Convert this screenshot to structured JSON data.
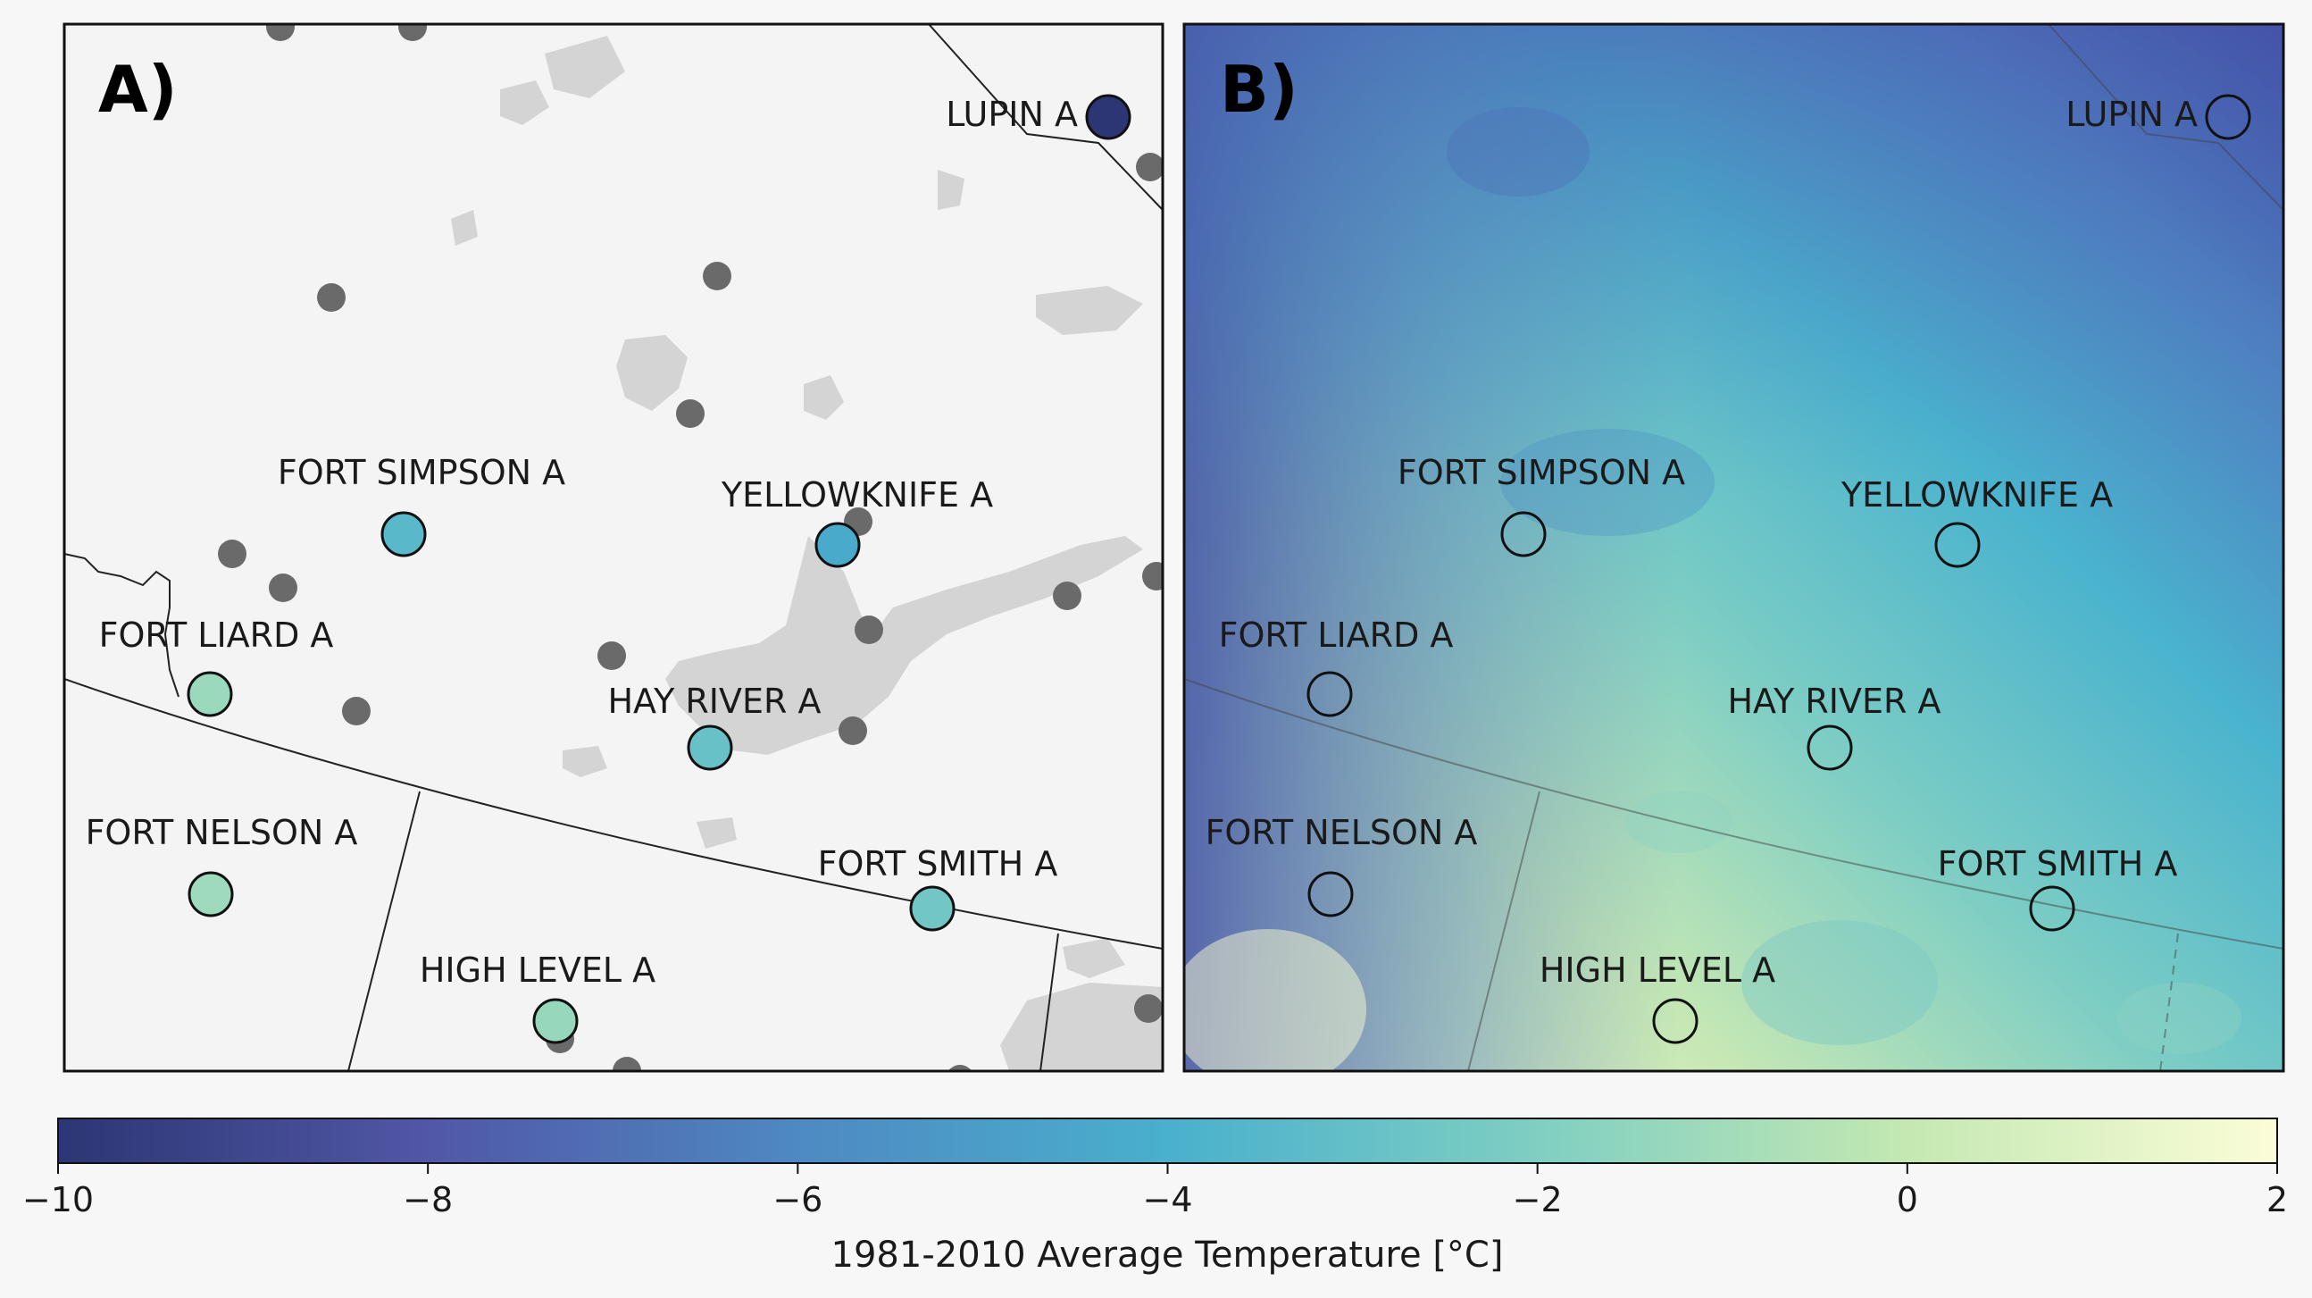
{
  "panels": [
    {
      "letter": "A)",
      "background": "base map (land, lakes, borders)",
      "grey_stations": "other stations"
    },
    {
      "letter": "B)",
      "background": "gridded 1981-2010 average temperature field"
    }
  ],
  "stations": [
    {
      "name": "LUPIN A",
      "temp_c": -10.0
    },
    {
      "name": "FORT SIMPSON A",
      "temp_c": -3.4
    },
    {
      "name": "YELLOWKNIFE A",
      "temp_c": -4.3
    },
    {
      "name": "FORT LIARD A",
      "temp_c": -1.2
    },
    {
      "name": "HAY RIVER A",
      "temp_c": -2.9
    },
    {
      "name": "FORT NELSON A",
      "temp_c": -1.1
    },
    {
      "name": "FORT SMITH A",
      "temp_c": -2.5
    },
    {
      "name": "HIGH LEVEL A",
      "temp_c": -1.3
    }
  ],
  "colorbar": {
    "label": "1981-2010 Average Temperature [°C]",
    "min": -10,
    "max": 2,
    "ticks": [
      "−10",
      "−8",
      "−6",
      "−4",
      "−2",
      "0",
      "2"
    ],
    "colors": [
      "#2c3674",
      "#5157a6",
      "#4e89c3",
      "#49b0cd",
      "#7fcfc2",
      "#c4e8b2",
      "#fbfdd8"
    ]
  },
  "colors": {
    "land": "#f4f4f4",
    "water": "#d4d4d4",
    "grey_station": "#6a6a6a"
  }
}
